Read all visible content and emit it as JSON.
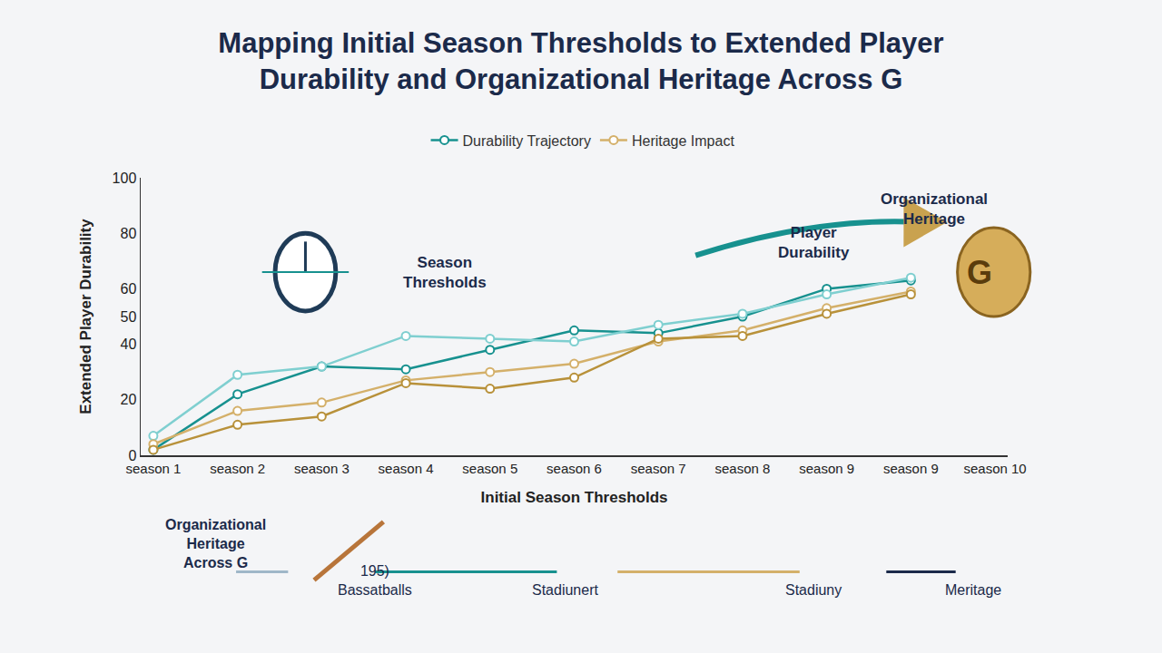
{
  "chart_data": {
    "type": "line",
    "title": "Mapping Initial Season Thresholds to Extended Player Durability and Organizational Heritage Across G",
    "x_label": "Initial Season Thresholds",
    "y_label": "Extended Player Durability",
    "categories": [
      "season 1",
      "season 2",
      "season 3",
      "season 4",
      "season 5",
      "season 6",
      "season 7",
      "season 8",
      "season 9",
      "season 9",
      "season 10"
    ],
    "series": [
      {
        "name": "Durability Trajectory",
        "color": "#17918f",
        "values": [
          2,
          22,
          32,
          31,
          38,
          45,
          44,
          50,
          60,
          63,
          null
        ]
      },
      {
        "color": "#7fcfd0",
        "values": [
          7,
          29,
          32,
          43,
          42,
          41,
          47,
          51,
          58,
          64,
          null
        ]
      },
      {
        "name": "Heritage Impact",
        "color": "#d4b06a",
        "values": [
          4,
          16,
          19,
          27,
          30,
          33,
          41,
          45,
          53,
          59,
          null
        ]
      },
      {
        "color": "#b8913a",
        "values": [
          2,
          11,
          14,
          26,
          24,
          28,
          42,
          43,
          51,
          58,
          null
        ]
      }
    ],
    "ylim": [
      0,
      100
    ],
    "yticks": [
      0,
      20,
      40,
      50,
      60,
      80,
      100
    ],
    "legend": "top",
    "grid": false,
    "marker": "circle",
    "annotations": [
      "Season Thresholds",
      "Player Durability",
      "Organizational Heritage",
      "G"
    ],
    "flow": [
      "Organizational Heritage Across G",
      "195) Bassatballs",
      "Stadiunert",
      "Stadiuny",
      "Meritage"
    ]
  }
}
